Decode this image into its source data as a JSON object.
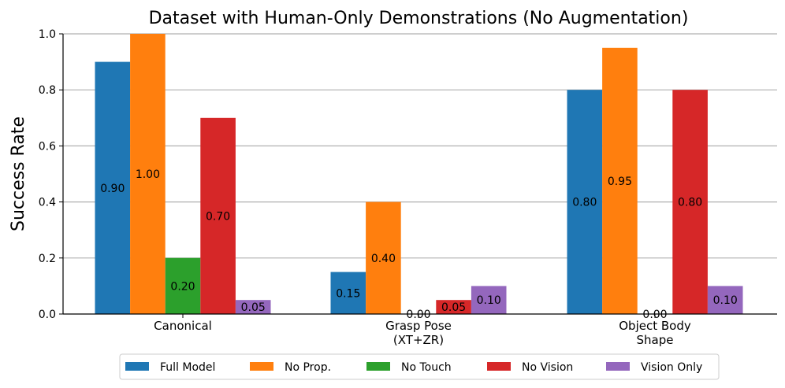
{
  "chart_data": {
    "type": "bar",
    "title": "Dataset with Human-Only Demonstrations (No Augmentation)",
    "xlabel": "",
    "ylabel": "Success Rate",
    "ylim": [
      0,
      1.0
    ],
    "yticks": [
      "0.0",
      "0.2",
      "0.4",
      "0.6",
      "0.8",
      "1.0"
    ],
    "grid": "horizontal",
    "legend_position": "bottom-center",
    "categories": [
      [
        "Canonical"
      ],
      [
        "Grasp Pose",
        "(XT+ZR)"
      ],
      [
        "Object Body",
        "Shape"
      ]
    ],
    "series": [
      {
        "name": "Full Model",
        "color": "#1f77b4",
        "values": [
          0.9,
          0.15,
          0.8
        ],
        "labels": [
          "0.90",
          "0.15",
          "0.80"
        ]
      },
      {
        "name": "No Prop.",
        "color": "#ff7f0e",
        "values": [
          1.0,
          0.4,
          0.95
        ],
        "labels": [
          "1.00",
          "0.40",
          "0.95"
        ]
      },
      {
        "name": "No Touch",
        "color": "#2ca02c",
        "values": [
          0.2,
          0.0,
          0.0
        ],
        "labels": [
          "0.20",
          "0.00",
          "0.00"
        ]
      },
      {
        "name": "No Vision",
        "color": "#d62728",
        "values": [
          0.7,
          0.05,
          0.8
        ],
        "labels": [
          "0.70",
          "0.05",
          "0.80"
        ]
      },
      {
        "name": "Vision Only",
        "color": "#9467bd",
        "values": [
          0.05,
          0.1,
          0.1
        ],
        "labels": [
          "0.05",
          "0.10",
          "0.10"
        ]
      }
    ]
  }
}
